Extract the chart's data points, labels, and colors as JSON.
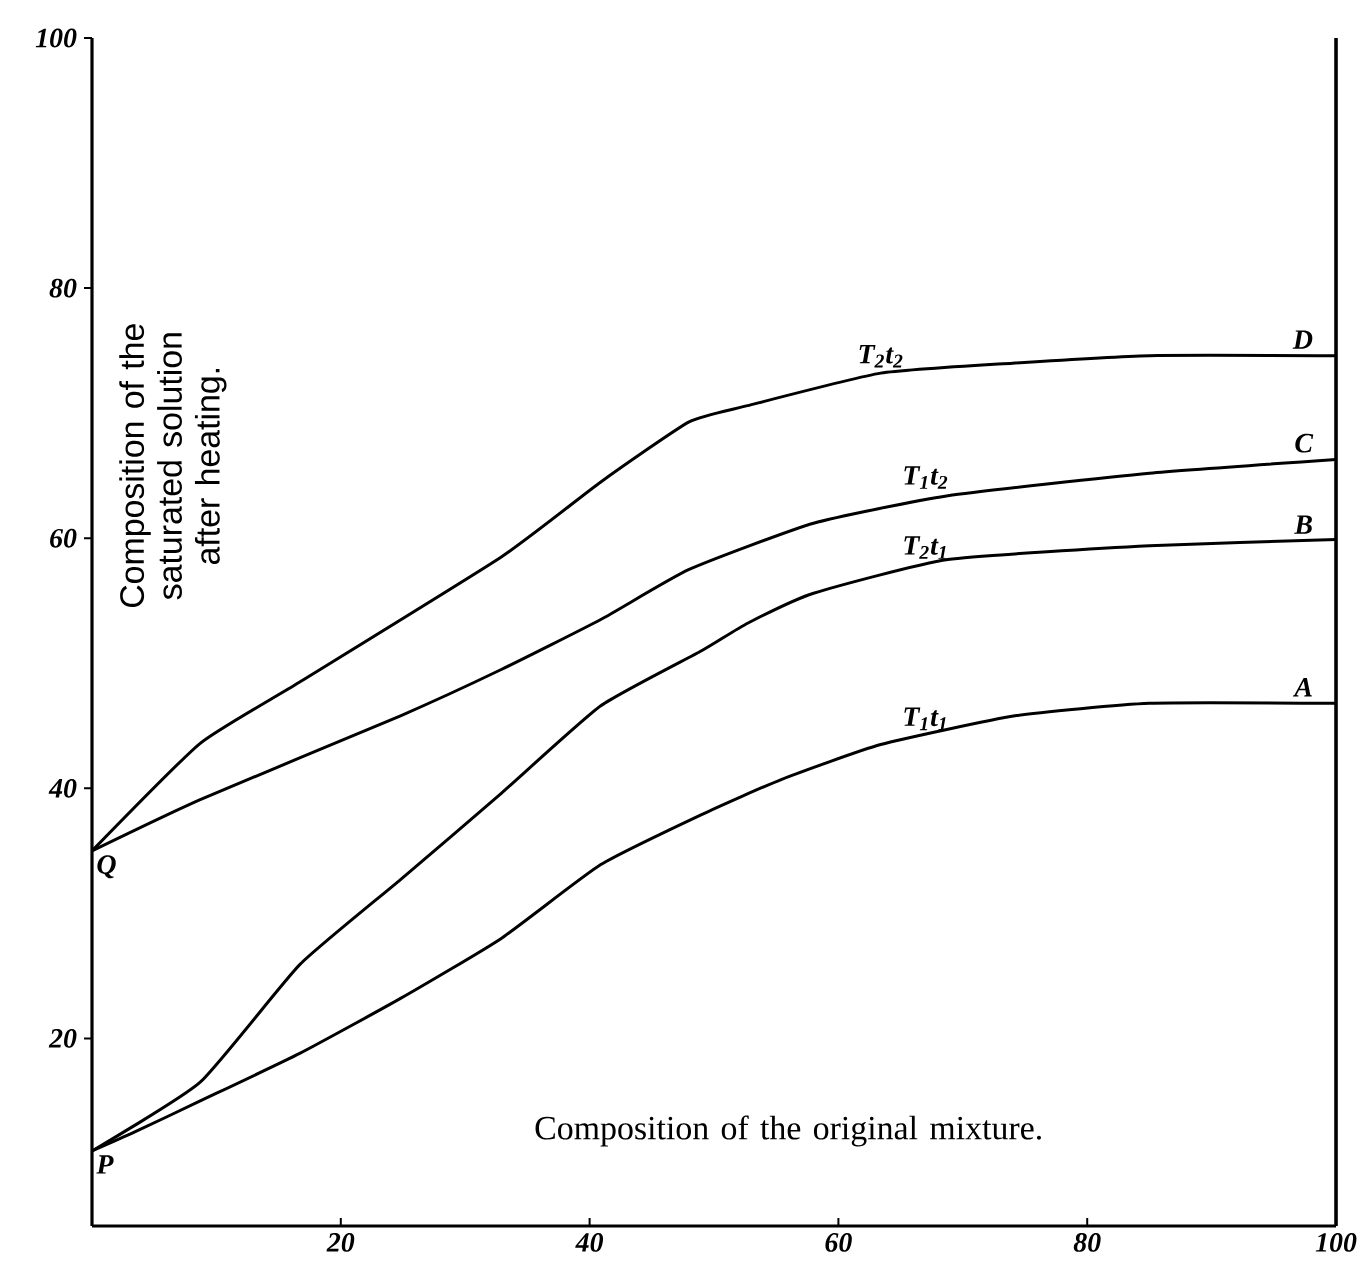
{
  "chart_data": {
    "type": "line",
    "xlabel": "Composition of the original mixture.",
    "ylabel": "Composition of the saturated solution after heating.",
    "xlim": [
      0,
      100
    ],
    "ylim": [
      5,
      100
    ],
    "xticks": [
      20,
      40,
      60,
      80,
      100
    ],
    "yticks": [
      20,
      40,
      60,
      80,
      100
    ],
    "grid": false,
    "marker": "none",
    "line_style": "solid",
    "series": [
      {
        "color": "#000000",
        "x": [
          0,
          3.4,
          8.7,
          16.7,
          24.8,
          32.9,
          40.9,
          49,
          55.4,
          63.4,
          74.2,
          85,
          100
        ],
        "values": [
          11,
          12.5,
          15,
          18.8,
          23.2,
          28,
          33.9,
          37.9,
          40.7,
          43.5,
          45.8,
          46.8,
          46.8
        ]
      },
      {
        "color": "#000000",
        "x": [
          0,
          8.7,
          16.7,
          24.8,
          32.9,
          40.9,
          49,
          52.7,
          58,
          68.8,
          85,
          100
        ],
        "values": [
          11,
          16.5,
          25.9,
          32.7,
          39.6,
          46.6,
          51,
          53.2,
          55.6,
          58.3,
          59.4,
          59.9
        ]
      },
      {
        "color": "#000000",
        "x": [
          0,
          8.7,
          24.8,
          32.9,
          40.9,
          48,
          58,
          68.8,
          85,
          100
        ],
        "values": [
          35,
          39.1,
          45.8,
          49.5,
          53.5,
          57.5,
          61.2,
          63.4,
          65.2,
          66.3
        ]
      },
      {
        "color": "#000000",
        "x": [
          0,
          8.7,
          16.7,
          32.9,
          40.9,
          48,
          52.7,
          63.4,
          74,
          85,
          100
        ],
        "values": [
          35,
          43.6,
          48.5,
          58.5,
          64.5,
          69.3,
          70.6,
          73.2,
          74,
          74.6,
          74.6
        ]
      }
    ],
    "annotations": [
      {
        "text": "P",
        "x": 0,
        "y": 11
      },
      {
        "text": "Q",
        "x": 0,
        "y": 35
      },
      {
        "text": "T$_{1}$t$_{1}$",
        "x": 67,
        "y": 44.3
      },
      {
        "text": "T$_{2}$t$_{1}$",
        "x": 67,
        "y": 58
      },
      {
        "text": "T$_{1}$t$_{2}$",
        "x": 67,
        "y": 63.6
      },
      {
        "text": "T$_{2}$t$_{2}$",
        "x": 63.4,
        "y": 73.3
      },
      {
        "text": "A",
        "x": 98.5,
        "y": 47
      },
      {
        "text": "B",
        "x": 98.5,
        "y": 60
      },
      {
        "text": "C",
        "x": 98.5,
        "y": 66.5
      },
      {
        "text": "D",
        "x": 98.5,
        "y": 74.8
      }
    ]
  }
}
